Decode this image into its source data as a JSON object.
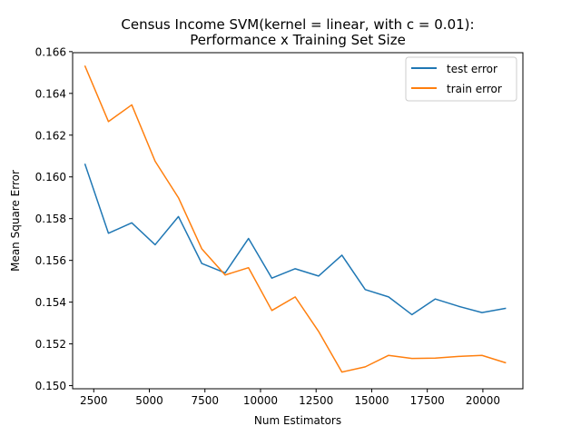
{
  "chart_data": {
    "type": "line",
    "title": [
      "Census Income SVM(kernel = linear, with c = 0.01):",
      "Performance x Training Set Size"
    ],
    "xlabel": "Num Estimators",
    "ylabel": "Mean Square Error",
    "xlim": [
      1550,
      21800
    ],
    "ylim": [
      0.14985,
      0.16595
    ],
    "xticks": [
      2500,
      5000,
      7500,
      10000,
      12500,
      15000,
      17500,
      20000
    ],
    "xtick_labels": [
      "2500",
      "5000",
      "7500",
      "10000",
      "12500",
      "15000",
      "17500",
      "20000"
    ],
    "yticks": [
      0.15,
      0.152,
      0.154,
      0.156,
      0.158,
      0.16,
      0.162,
      0.164,
      0.166
    ],
    "ytick_labels": [
      "0.150",
      "0.152",
      "0.154",
      "0.156",
      "0.158",
      "0.160",
      "0.162",
      "0.164",
      "0.166"
    ],
    "grid": false,
    "legend_position": "top-right",
    "x": [
      2110,
      3160,
      4210,
      5260,
      6310,
      7360,
      8410,
      9460,
      10510,
      11560,
      12610,
      13660,
      14710,
      15760,
      16810,
      17860,
      18910,
      19960,
      21010
    ],
    "series": [
      {
        "name": "test error",
        "color": "#1f77b4",
        "values": [
          0.1606,
          0.1573,
          0.1578,
          0.15675,
          0.1581,
          0.15585,
          0.1554,
          0.15705,
          0.15515,
          0.1556,
          0.15525,
          0.15625,
          0.1546,
          0.15425,
          0.1534,
          0.15415,
          0.1538,
          0.1535,
          0.1537
        ]
      },
      {
        "name": "train error",
        "color": "#ff7f0e",
        "values": [
          0.1653,
          0.16265,
          0.16345,
          0.16075,
          0.159,
          0.15655,
          0.1553,
          0.15565,
          0.1536,
          0.15425,
          0.1526,
          0.15065,
          0.1509,
          0.15145,
          0.1513,
          0.15132,
          0.1514,
          0.15145,
          0.1511
        ]
      }
    ]
  }
}
